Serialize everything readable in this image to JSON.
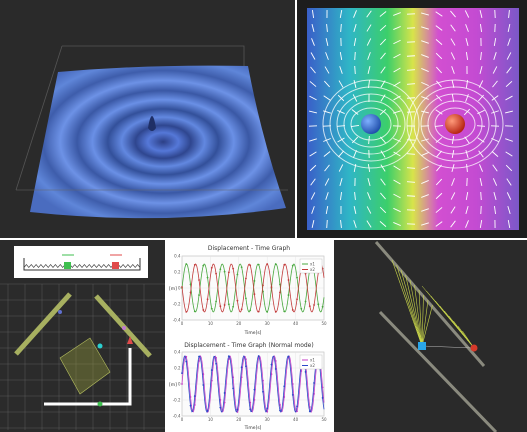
{
  "panels": {
    "wave_surface": {
      "icon": "ripple-surface"
    },
    "electric_field": {
      "charges": [
        {
          "sign": "negative",
          "color": "#2f6fd6"
        },
        {
          "sign": "positive",
          "color": "#e0391b"
        }
      ]
    },
    "spring_system": {
      "colors": {
        "mass1": "#3fbf4f",
        "mass2": "#e04a4a"
      }
    },
    "pendulum": {
      "colors": {
        "bob1": "#2aa6e8",
        "bob2": "#d63a2a"
      }
    }
  },
  "graphs": {
    "top": {
      "title": "Displacement - Time Graph",
      "ylabel": "[m]",
      "xlabel": "Time[s]",
      "xticks": [
        "0",
        "10",
        "20",
        "30",
        "40",
        "50"
      ],
      "yticks": [
        "0.4",
        "0.2",
        "0",
        "-0.2",
        "-0.4"
      ],
      "legend": [
        "x1",
        "x2"
      ]
    },
    "bottom": {
      "title": "Displacement - Time Graph (Normal mode)",
      "ylabel": "[m]",
      "xlabel": "Time[s]",
      "xticks": [
        "0",
        "10",
        "20",
        "30",
        "40",
        "50"
      ],
      "yticks": [
        "0.4",
        "0.2",
        "0",
        "-0.2",
        "-0.4"
      ],
      "legend": [
        "x1",
        "x2"
      ]
    }
  },
  "chart_data": [
    {
      "type": "line",
      "title": "Displacement - Time Graph",
      "xlabel": "Time[s]",
      "ylabel": "[m]",
      "xlim": [
        0,
        50
      ],
      "ylim": [
        -0.4,
        0.4
      ],
      "series": [
        {
          "name": "x1",
          "color": "#49a83f",
          "amplitude": 0.3,
          "period": 6.3,
          "phase": 0
        },
        {
          "name": "x2",
          "color": "#c23b3b",
          "amplitude": 0.3,
          "period": 6.3,
          "phase": 3.1
        }
      ]
    },
    {
      "type": "line",
      "title": "Displacement - Time Graph (Normal mode)",
      "xlabel": "Time[s]",
      "ylabel": "[m]",
      "xlim": [
        0,
        50
      ],
      "ylim": [
        -0.4,
        0.4
      ],
      "series": [
        {
          "name": "x1",
          "color": "#c43ec4",
          "amplitude": 0.35,
          "period": 5.2,
          "phase": 0
        },
        {
          "name": "x2",
          "color": "#2b48c8",
          "amplitude": 0.35,
          "period": 5.2,
          "phase": 0.4
        }
      ]
    }
  ]
}
